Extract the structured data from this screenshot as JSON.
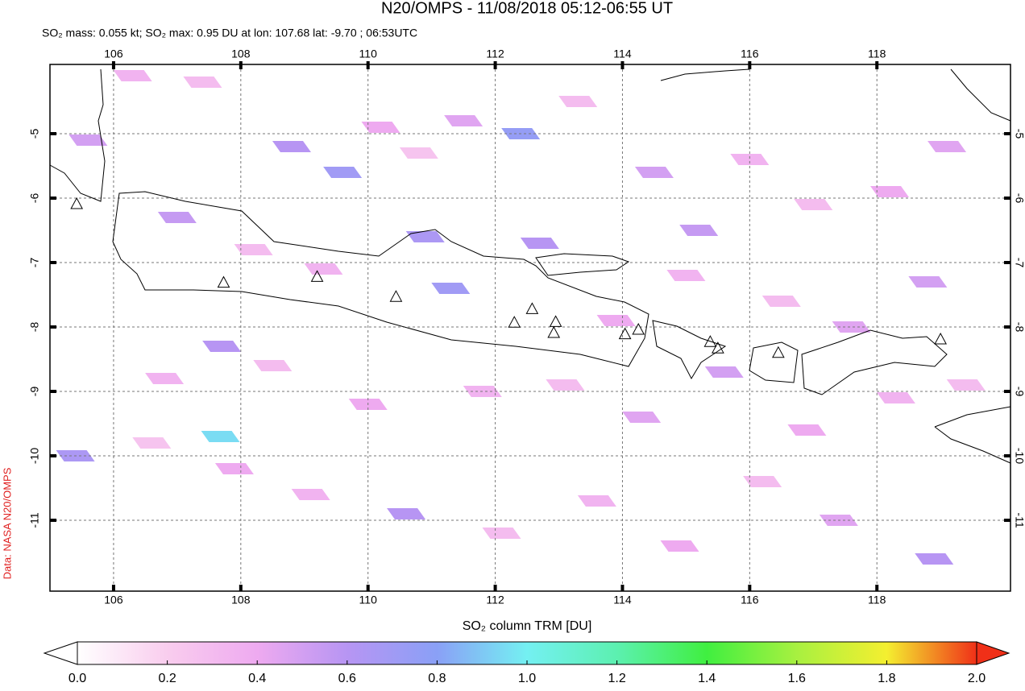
{
  "chart_data": {
    "type": "map",
    "title": "N20/OMPS - 11/08/2018 05:12-06:55 UT",
    "subtitle": "SO₂ mass: 0.055 kt; SO₂ max: 0.95 DU at lon: 107.68 lat: -9.70 ; 06:53UTC",
    "side_label": "Data: NASA N20/OMPS",
    "xlim": [
      105,
      120.1
    ],
    "ylim": [
      -12.1,
      -4
    ],
    "xticks": [
      106,
      108,
      110,
      112,
      114,
      116,
      118
    ],
    "yticks": [
      -5,
      -6,
      -7,
      -8,
      -9,
      -10,
      -11
    ],
    "grid": true,
    "x": [
      106.3,
      107.4,
      108.8,
      109.6,
      110.2,
      110.8,
      111.5,
      112.4,
      113.3,
      114.5,
      115.2,
      116.0,
      117.0,
      118.2,
      119.1,
      105.6,
      107.0,
      108.2,
      109.3,
      110.9,
      111.3,
      112.7,
      113.9,
      115.0,
      116.5,
      117.6,
      118.8,
      106.8,
      107.7,
      108.5,
      110.0,
      111.8,
      113.1,
      114.3,
      115.6,
      116.9,
      118.3,
      119.4,
      105.4,
      106.6,
      107.9,
      109.1,
      110.6,
      112.1,
      113.6,
      114.9,
      116.2,
      117.4,
      118.9,
      107.68
    ],
    "y": [
      -4.1,
      -4.2,
      -5.2,
      -5.6,
      -4.9,
      -5.3,
      -4.8,
      -5.0,
      -4.5,
      -5.6,
      -6.5,
      -5.4,
      -6.1,
      -5.9,
      -5.2,
      -5.1,
      -6.3,
      -6.8,
      -7.1,
      -6.6,
      -7.4,
      -6.7,
      -7.9,
      -7.2,
      -7.6,
      -8.0,
      -7.3,
      -8.8,
      -8.3,
      -8.6,
      -9.2,
      -9.0,
      -8.9,
      -9.4,
      -8.7,
      -9.6,
      -9.1,
      -8.9,
      -10.0,
      -9.8,
      -10.2,
      -10.6,
      -10.9,
      -11.2,
      -10.7,
      -11.4,
      -10.4,
      -11.0,
      -11.6,
      -9.7
    ],
    "values": [
      0.35,
      0.3,
      0.6,
      0.7,
      0.4,
      0.25,
      0.45,
      0.75,
      0.3,
      0.5,
      0.55,
      0.35,
      0.3,
      0.4,
      0.45,
      0.5,
      0.55,
      0.3,
      0.35,
      0.65,
      0.7,
      0.6,
      0.4,
      0.35,
      0.3,
      0.45,
      0.5,
      0.35,
      0.6,
      0.3,
      0.4,
      0.35,
      0.3,
      0.45,
      0.5,
      0.4,
      0.35,
      0.3,
      0.65,
      0.25,
      0.4,
      0.35,
      0.6,
      0.3,
      0.35,
      0.4,
      0.3,
      0.45,
      0.6,
      0.95
    ],
    "volcanoes": {
      "x": [
        105.42,
        107.73,
        109.2,
        110.44,
        112.3,
        112.58,
        112.95,
        112.92,
        114.04,
        114.25,
        115.38,
        115.5,
        116.45,
        119.0
      ],
      "y": [
        -6.1,
        -7.32,
        -7.23,
        -7.54,
        -7.94,
        -7.73,
        -7.93,
        -8.1,
        -8.12,
        -8.05,
        -8.24,
        -8.34,
        -8.41,
        -8.2
      ]
    },
    "colorbar": {
      "label": "SO₂ column TRM [DU]",
      "lim": [
        0,
        2
      ],
      "colors": [
        "#ffffff",
        "#f9cdee",
        "#eeaaf0",
        "#b795f3",
        "#8aa0f6",
        "#74f0f2",
        "#5cf0b0",
        "#40ef40",
        "#a8f040",
        "#f4ef30",
        "#f03018"
      ],
      "ticks": [
        {
          "value": 0,
          "label": "0.0"
        },
        0.2,
        0.4,
        0.6,
        0.8,
        {
          "value": 1,
          "label": "1.0"
        },
        1.2,
        1.4,
        1.6,
        1.8,
        {
          "value": 2,
          "label": "2.0"
        }
      ]
    }
  }
}
